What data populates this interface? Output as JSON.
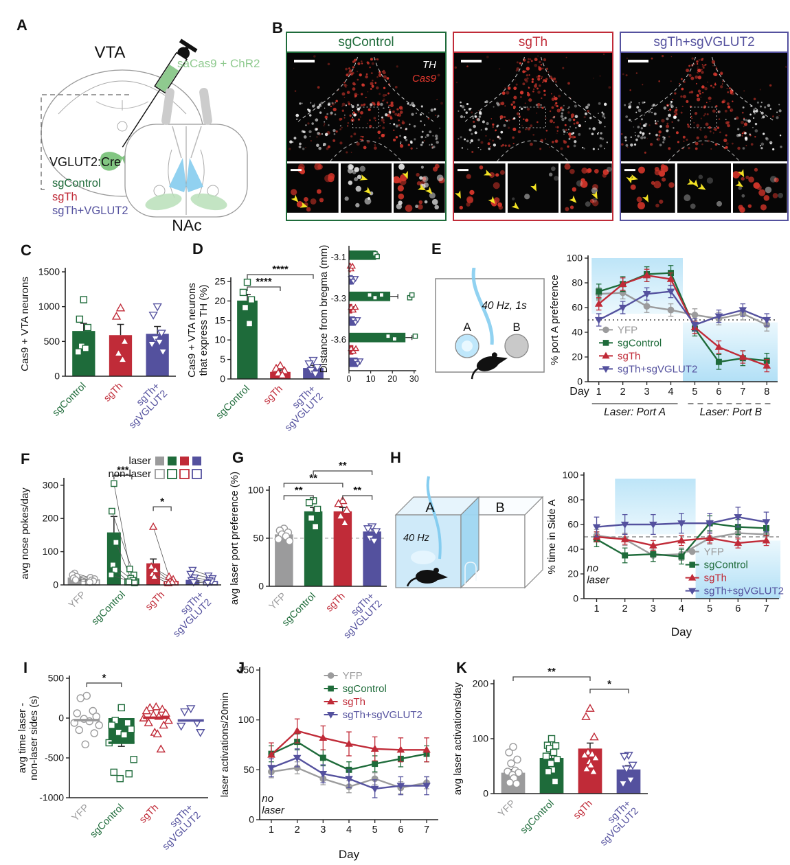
{
  "colors": {
    "green": "#1e6b3a",
    "red": "#c02b38",
    "purple": "#54519e",
    "gray": "#9b9b9c",
    "light_green": "#8fca8f",
    "laser_blue": "#bfe6f8",
    "yellow": "#f3e324",
    "cas9_red": "#e8392f"
  },
  "panels": {
    "letters": {
      "a": "A",
      "b": "B",
      "c": "C",
      "d": "D",
      "e": "E",
      "f": "F",
      "g": "G",
      "h": "H",
      "i": "I",
      "j": "J",
      "k": "K"
    },
    "a": {
      "vta": "VTA",
      "nac": "NAc",
      "injection": "saCas9 + ChR2",
      "cre": "VGLUT2:Cre",
      "legend": [
        {
          "label": "sgControl",
          "color": "#1e6b3a"
        },
        {
          "label": "sgTh",
          "color": "#c02b38"
        },
        {
          "label": "sgTh+VGLUT2",
          "color": "#54519e"
        }
      ]
    },
    "b": {
      "images": [
        {
          "title": "sgControl",
          "color": "#1e6b3a"
        },
        {
          "title": "sgTh",
          "color": "#c02b38"
        },
        {
          "title": "sgTh+sgVGLUT2",
          "color": "#54519e"
        }
      ],
      "stains": [
        {
          "text": "TH",
          "color": "#ffffff"
        },
        {
          "text": "Cas9",
          "color": "#e8392f"
        }
      ]
    },
    "e_diagram": {
      "freq": "40 Hz, 1s",
      "port_a": "A",
      "port_b": "B"
    },
    "h_diagram": {
      "freq": "40 Hz",
      "side_a": "A",
      "side_b": "B"
    }
  },
  "chart_data": [
    {
      "id": "c",
      "type": "bar",
      "title": "",
      "ylabel": "Cas9 + VTA neurons",
      "ylim": [
        0,
        1500
      ],
      "yticks": [
        0,
        500,
        1000,
        1500
      ],
      "categories": [
        {
          "label": "sgControl",
          "color": "#1e6b3a",
          "marker": "square"
        },
        {
          "label": "sgTh",
          "color": "#c02b38",
          "marker": "triangle-up"
        },
        {
          "label": "sgTh+\nsgVGLUT2",
          "color": "#54519e",
          "marker": "triangle-down"
        }
      ],
      "values": [
        650,
        590,
        610
      ],
      "errors": [
        110,
        155,
        105
      ],
      "points": [
        [
          1100,
          820,
          700,
          430,
          400,
          350
        ],
        [
          980,
          860,
          500,
          330,
          240
        ],
        [
          1000,
          880,
          620,
          540,
          490,
          460,
          350
        ]
      ]
    },
    {
      "id": "d",
      "type": "bar",
      "ylabel": "Cas9 + VTA neurons\nthat express TH (%)",
      "ylim": [
        0,
        25
      ],
      "yticks": [
        0,
        5,
        10,
        15,
        20,
        25
      ],
      "categories": [
        {
          "label": "sgControl",
          "color": "#1e6b3a",
          "marker": "square"
        },
        {
          "label": "sgTh",
          "color": "#c02b38",
          "marker": "triangle-up"
        },
        {
          "label": "sgTh+\nsgVGLUT2",
          "color": "#54519e",
          "marker": "triangle-down"
        }
      ],
      "values": [
        20.1,
        1.8,
        2.8
      ],
      "errors": [
        1.6,
        0.5,
        0.7
      ],
      "points": [
        [
          24.8,
          22.2,
          20.3,
          18.3,
          14.2
        ],
        [
          3.4,
          2.7,
          2.1,
          1.5,
          1.0
        ],
        [
          4.8,
          3.9,
          3.0,
          2.2,
          1.3
        ]
      ],
      "sig": [
        {
          "a": 0,
          "b": 1,
          "label": "****",
          "level": 0
        },
        {
          "a": 0,
          "b": 2,
          "label": "****",
          "level": 1
        }
      ]
    },
    {
      "id": "d_inset",
      "type": "hbar",
      "ylabel": "Distance from bregma (mm)",
      "categories": [
        "-3.1",
        "-3.3",
        "-3.6"
      ],
      "xlim": [
        0,
        31
      ],
      "xticks": [
        0,
        10,
        20,
        30
      ],
      "series": [
        {
          "name": "sgControl",
          "color": "#1e6b3a",
          "marker": "square",
          "values": [
            12.5,
            19,
            26
          ],
          "errors": [
            1,
            3.5,
            3
          ],
          "points": [
            [
              12,
              13
            ],
            [
              9.5,
              12,
              15,
              28,
              29
            ],
            [
              18,
              21,
              30.5
            ]
          ]
        },
        {
          "name": "sgTh",
          "color": "#c02b38",
          "marker": "triangle-up",
          "values": [
            0.8,
            1.5,
            2
          ],
          "errors": [
            0.3,
            0.6,
            0.5
          ],
          "points": [
            [
              0.5,
              1,
              1.6
            ],
            [
              1,
              2,
              3
            ],
            [
              1,
              2,
              3.2
            ]
          ]
        },
        {
          "name": "sgTh+sgVGLUT2",
          "color": "#54519e",
          "marker": "triangle-down",
          "values": [
            1.8,
            2.8,
            4
          ],
          "errors": [
            0.5,
            0.8,
            1
          ],
          "points": [
            [
              1,
              2,
              3
            ],
            [
              2,
              3,
              4
            ],
            [
              3,
              4,
              5.2
            ]
          ]
        }
      ]
    },
    {
      "id": "e",
      "type": "line",
      "ylabel": "% port A preference",
      "ylim": [
        0,
        100
      ],
      "yticks": [
        0,
        20,
        40,
        60,
        80,
        100
      ],
      "x": [
        1,
        2,
        3,
        4,
        5,
        6,
        7,
        8
      ],
      "xlabel": "Day",
      "xlabel_pos": "left",
      "hline": 50,
      "hline_style": "dotted",
      "series": [
        {
          "name": "YFP",
          "color": "#9b9b9c",
          "marker": "circle",
          "values": [
            71,
            72,
            61,
            58,
            54,
            51,
            55,
            46
          ],
          "err": 5
        },
        {
          "name": "sgControl",
          "color": "#1e6b3a",
          "marker": "square",
          "values": [
            73,
            79,
            87,
            88,
            43,
            16,
            19,
            17
          ],
          "err": 6
        },
        {
          "name": "sgTh",
          "color": "#c02b38",
          "marker": "triangle-up",
          "values": [
            63,
            79,
            86,
            83,
            44,
            28,
            20,
            13
          ],
          "err": 5
        },
        {
          "name": "sgTh+sgVGLUT2",
          "color": "#54519e",
          "marker": "triangle-down",
          "values": [
            50,
            60,
            71,
            73,
            46,
            53,
            58,
            50
          ],
          "err": 5
        }
      ],
      "shading": [
        {
          "x0": 0.7,
          "x1": 4.5,
          "y0": 55,
          "y1": 100
        },
        {
          "x0": 4.5,
          "x1": 8.45,
          "y0": 0,
          "y1": 48
        }
      ],
      "xbands": [
        {
          "text": "Laser: Port A",
          "x0": 1,
          "x1": 4,
          "style": "solid"
        },
        {
          "text": "Laser: Port B",
          "x0": 5,
          "x1": 8,
          "style": "dashed"
        }
      ],
      "legend_pos": "bottom-left"
    },
    {
      "id": "f",
      "type": "paired_bar",
      "ylabel": "avg nose pokes/day",
      "ylim": [
        0,
        310
      ],
      "yticks": [
        0,
        100,
        200,
        300
      ],
      "legend": {
        "laser": "laser",
        "non_laser": "non-laser"
      },
      "categories": [
        {
          "label": "YFP",
          "color": "#9b9b9c",
          "marker": "circle"
        },
        {
          "label": "sgControl",
          "color": "#1e6b3a",
          "marker": "square"
        },
        {
          "label": "sgTh",
          "color": "#c02b38",
          "marker": "triangle-up"
        },
        {
          "label": "sgTh+\nsgVGLUT2",
          "color": "#54519e",
          "marker": "triangle-down"
        }
      ],
      "laser_values": [
        22,
        158,
        65,
        15
      ],
      "laser_errors": [
        6,
        48,
        13,
        4
      ],
      "nonlaser_values": [
        15,
        18,
        10,
        10
      ],
      "laser_points": [
        [
          35,
          30,
          25,
          20,
          15
        ],
        [
          305,
          222,
          128,
          60,
          45,
          30
        ],
        [
          175,
          55,
          45,
          33,
          25
        ],
        [
          45,
          33,
          22,
          14,
          8
        ]
      ],
      "nonlaser_points": [
        [
          22,
          18,
          14,
          11,
          8
        ],
        [
          48,
          30,
          20,
          14,
          9,
          6
        ],
        [
          25,
          17,
          11,
          8,
          5
        ],
        [
          28,
          20,
          14,
          10,
          6
        ]
      ],
      "sig": [
        {
          "cat": 1,
          "label": "***",
          "yval": 330
        },
        {
          "cat": 2,
          "label": "*",
          "yval": 235
        }
      ]
    },
    {
      "id": "g",
      "type": "bar",
      "ylabel": "avg laser port preference (%)",
      "ylim": [
        0,
        100
      ],
      "yticks": [
        0,
        50,
        100
      ],
      "hline": 50,
      "categories": [
        {
          "label": "YFP",
          "color": "#9b9b9c",
          "marker": "circle"
        },
        {
          "label": "sgControl",
          "color": "#1e6b3a",
          "marker": "square"
        },
        {
          "label": "sgTh",
          "color": "#c02b38",
          "marker": "triangle-up"
        },
        {
          "label": "sgTh+\nsgVGLUT2",
          "color": "#54519e",
          "marker": "triangle-down"
        }
      ],
      "values": [
        54,
        78,
        78,
        57
      ],
      "errors": [
        2,
        4,
        4,
        3
      ],
      "points": [
        [
          60,
          58,
          56,
          54,
          52,
          49,
          47
        ],
        [
          89,
          87,
          80,
          71,
          62
        ],
        [
          89,
          86,
          79,
          73,
          66
        ],
        [
          62,
          60,
          57,
          50,
          47
        ]
      ],
      "sig": [
        {
          "a": 0,
          "b": 1,
          "label": "**",
          "level": 0
        },
        {
          "a": 2,
          "b": 3,
          "label": "**",
          "level": 0
        },
        {
          "a": 0,
          "b": 2,
          "label": "**",
          "level": 1
        },
        {
          "a": 1,
          "b": 3,
          "label": "**",
          "level": 2
        }
      ]
    },
    {
      "id": "h",
      "type": "line",
      "ylabel": "% time in Side A",
      "ylim": [
        0,
        100
      ],
      "yticks": [
        0,
        20,
        40,
        60,
        80,
        100
      ],
      "x": [
        1,
        2,
        3,
        4,
        5,
        6,
        7
      ],
      "xlabel": "Day",
      "xlabel_pos": "center",
      "hline": 50,
      "hline_style": "dashed",
      "series": [
        {
          "name": "YFP",
          "color": "#9b9b9c",
          "marker": "circle",
          "values": [
            51,
            48,
            35,
            36,
            49,
            53,
            52
          ],
          "err": 5
        },
        {
          "name": "sgControl",
          "color": "#1e6b3a",
          "marker": "square",
          "values": [
            48,
            35,
            36,
            34,
            61,
            58,
            57
          ],
          "err": 6
        },
        {
          "name": "sgTh",
          "color": "#c02b38",
          "marker": "triangle-up",
          "values": [
            50,
            48,
            43,
            47,
            49,
            45,
            47
          ],
          "err": 4
        },
        {
          "name": "sgTh+sgVGLUT2",
          "color": "#54519e",
          "marker": "triangle-down",
          "values": [
            58,
            60,
            60,
            61,
            61,
            66,
            62
          ],
          "err": 8
        }
      ],
      "shading": [
        {
          "x0": 1.65,
          "x1": 4.5,
          "y0": 52,
          "y1": 97
        },
        {
          "x0": 4.5,
          "x1": 7.5,
          "y0": 0,
          "y1": 47
        }
      ],
      "annotations": [
        {
          "text": "no\nlaser",
          "x": 0.85,
          "y": 22,
          "italic": true
        }
      ],
      "legend_pos": "bottom-right"
    },
    {
      "id": "i",
      "type": "scatter_mean",
      "ylabel": "avg time laser -\nnon-laser sides (s)",
      "ylim": [
        -1000,
        500
      ],
      "yticks": [
        500,
        0,
        -500,
        -1000
      ],
      "categories": [
        {
          "label": "YFP",
          "color": "#9b9b9c",
          "marker": "circle"
        },
        {
          "label": "sgControl",
          "color": "#1e6b3a",
          "marker": "square"
        },
        {
          "label": "sgTh",
          "color": "#c02b38",
          "marker": "triangle-up"
        },
        {
          "label": "sgTh+\nsgVGLUT2",
          "color": "#54519e",
          "marker": "triangle-down"
        }
      ],
      "means": [
        -25,
        -310,
        5,
        -30
      ],
      "bar_cat": 1,
      "bar_error": 45,
      "points": [
        [
          280,
          250,
          90,
          60,
          20,
          -10,
          -40,
          -60,
          -90,
          -150,
          -190,
          -330
        ],
        [
          130,
          -30,
          -60,
          -90,
          -140,
          -180,
          -210,
          -310,
          -520,
          -680,
          -700,
          -760
        ],
        [
          140,
          130,
          110,
          90,
          60,
          40,
          20,
          0,
          -30,
          -60,
          -90,
          -180,
          -200,
          -390
        ],
        [
          120,
          80,
          -60,
          -100,
          -180
        ]
      ],
      "sig": [
        {
          "a": 0,
          "b": 1,
          "label": "*",
          "yval": 440
        }
      ]
    },
    {
      "id": "j",
      "type": "line",
      "ylabel": "laser activations/20min",
      "ylim": [
        0,
        150
      ],
      "yticks": [
        0,
        50,
        100,
        150
      ],
      "x": [
        1,
        2,
        3,
        4,
        5,
        6,
        7
      ],
      "xlabel": "Day",
      "xlabel_pos": "center",
      "series": [
        {
          "name": "YFP",
          "color": "#9b9b9c",
          "marker": "circle",
          "values": [
            48,
            52,
            41,
            33,
            41,
            32,
            37
          ],
          "err": 6
        },
        {
          "name": "sgControl",
          "color": "#1e6b3a",
          "marker": "square",
          "values": [
            66,
            78,
            62,
            50,
            56,
            61,
            66
          ],
          "err": 8
        },
        {
          "name": "sgTh",
          "color": "#c02b38",
          "marker": "triangle-up",
          "values": [
            65,
            89,
            82,
            76,
            71,
            70,
            70
          ],
          "err": 12
        },
        {
          "name": "sgTh+sgVGLUT2",
          "color": "#54519e",
          "marker": "triangle-down",
          "values": [
            52,
            62,
            46,
            41,
            31,
            34,
            34
          ],
          "err": 9
        }
      ],
      "annotations": [
        {
          "text": "no\nlaser",
          "x": 0.85,
          "y": 18,
          "italic": true
        }
      ],
      "legend_pos": "top"
    },
    {
      "id": "k",
      "type": "bar",
      "ylabel": "avg laser activations/day",
      "ylim": [
        0,
        200
      ],
      "yticks": [
        0,
        100,
        200
      ],
      "categories": [
        {
          "label": "YFP",
          "color": "#9b9b9c",
          "marker": "circle"
        },
        {
          "label": "sgControl",
          "color": "#1e6b3a",
          "marker": "square"
        },
        {
          "label": "sgTh",
          "color": "#c02b38",
          "marker": "triangle-up"
        },
        {
          "label": "sgTh+\nsgVGLUT2",
          "color": "#54519e",
          "marker": "triangle-down"
        }
      ],
      "values": [
        38,
        65,
        82,
        44
      ],
      "errors": [
        6,
        8,
        10,
        7
      ],
      "points": [
        [
          85,
          75,
          62,
          55,
          42,
          40,
          38,
          34,
          28,
          20,
          18
        ],
        [
          100,
          88,
          87,
          82,
          75,
          68,
          62,
          55,
          43,
          40,
          22
        ],
        [
          155,
          140,
          103,
          75,
          72,
          70,
          65,
          58,
          52,
          45,
          40
        ],
        [
          70,
          68,
          52,
          45,
          25,
          18
        ]
      ],
      "sig": [
        {
          "a": 0,
          "b": 2,
          "label": "**",
          "level": 1
        },
        {
          "a": 2,
          "b": 3,
          "label": "*",
          "level": 0
        }
      ]
    }
  ]
}
